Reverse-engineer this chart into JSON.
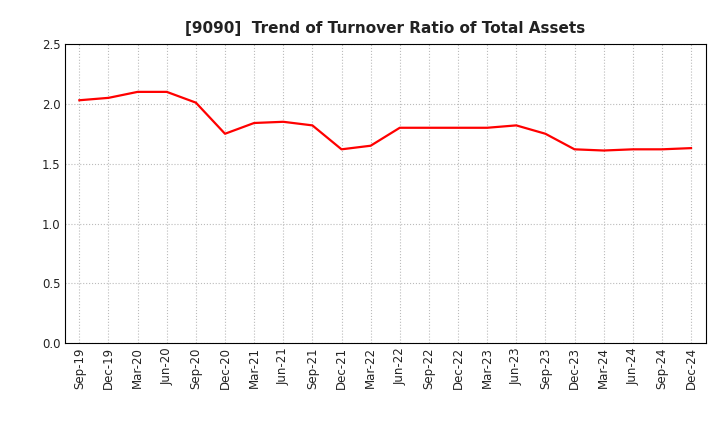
{
  "title": "[9090]  Trend of Turnover Ratio of Total Assets",
  "x_labels": [
    "Sep-19",
    "Dec-19",
    "Mar-20",
    "Jun-20",
    "Sep-20",
    "Dec-20",
    "Mar-21",
    "Jun-21",
    "Sep-21",
    "Dec-21",
    "Mar-22",
    "Jun-22",
    "Sep-22",
    "Dec-22",
    "Mar-23",
    "Jun-23",
    "Sep-23",
    "Dec-23",
    "Mar-24",
    "Jun-24",
    "Sep-24",
    "Dec-24"
  ],
  "y_values": [
    2.03,
    2.05,
    2.1,
    2.1,
    2.01,
    1.75,
    1.84,
    1.85,
    1.82,
    1.62,
    1.65,
    1.8,
    1.8,
    1.8,
    1.8,
    1.82,
    1.75,
    1.62,
    1.61,
    1.62,
    1.62,
    1.63
  ],
  "line_color": "#FF0000",
  "line_width": 1.6,
  "ylim": [
    0.0,
    2.5
  ],
  "yticks": [
    0.0,
    0.5,
    1.0,
    1.5,
    2.0,
    2.5
  ],
  "grid_color": "#bbbbbb",
  "background_color": "#ffffff",
  "title_fontsize": 11,
  "tick_fontsize": 8.5
}
